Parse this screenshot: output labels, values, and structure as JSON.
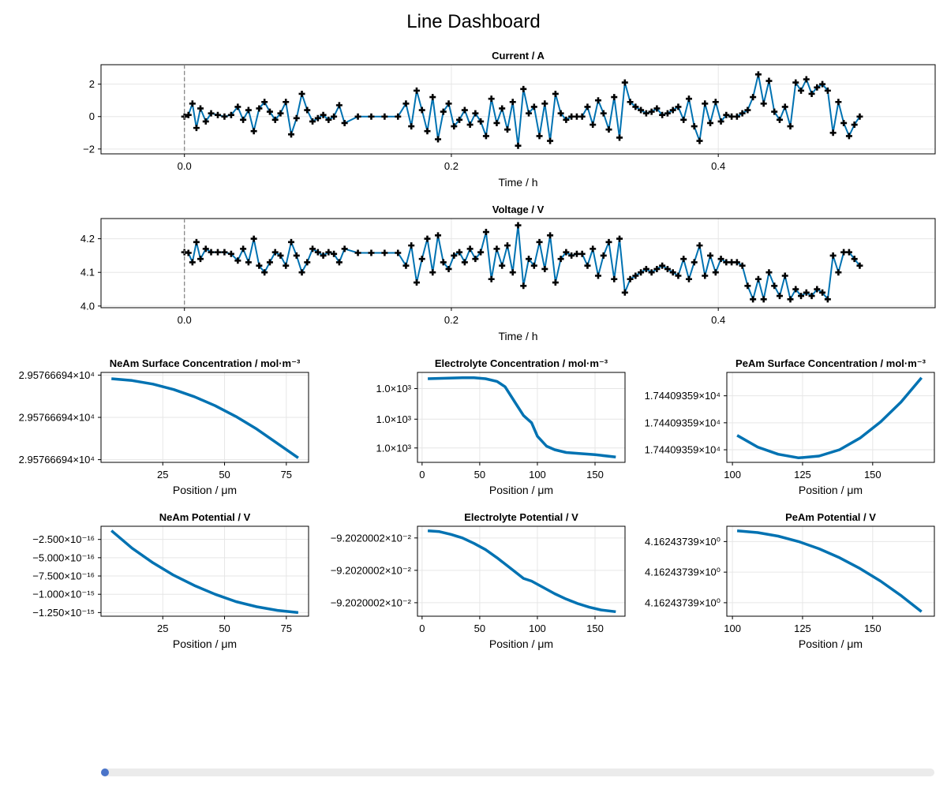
{
  "title": "Line Dashboard",
  "colors": {
    "line": "#0072b2",
    "marker": "#000000",
    "cursor": "#808080",
    "grid": "#e6e6e6",
    "slider_knob": "#4a74c9",
    "slider_track": "#ebebeb"
  },
  "slider": {
    "value": 0.0
  },
  "chart_data": [
    {
      "id": "current",
      "type": "line",
      "title": "Current  /  A",
      "xlabel": "Time  /  h",
      "xlim": [
        -0.0625,
        0.5625
      ],
      "ylim": [
        -2.3,
        3.2
      ],
      "xticks": [
        0.0,
        0.2,
        0.4
      ],
      "xtick_labels": [
        "0.0",
        "0.2",
        "0.4"
      ],
      "yticks": [
        -2,
        0,
        2
      ],
      "ytick_labels": [
        "−2",
        "0",
        "2"
      ],
      "markers": true,
      "cursor_x": 0.0,
      "series": [
        {
          "x": [
            0.0,
            0.003,
            0.006,
            0.009,
            0.012,
            0.016,
            0.02,
            0.025,
            0.03,
            0.035,
            0.04,
            0.044,
            0.048,
            0.052,
            0.056,
            0.06,
            0.064,
            0.068,
            0.072,
            0.076,
            0.08,
            0.084,
            0.088,
            0.092,
            0.096,
            0.1,
            0.104,
            0.108,
            0.112,
            0.116,
            0.12,
            0.13,
            0.14,
            0.15,
            0.16,
            0.166,
            0.17,
            0.174,
            0.178,
            0.182,
            0.186,
            0.19,
            0.194,
            0.198,
            0.202,
            0.206,
            0.21,
            0.214,
            0.218,
            0.222,
            0.226,
            0.23,
            0.234,
            0.238,
            0.242,
            0.246,
            0.25,
            0.254,
            0.258,
            0.262,
            0.266,
            0.27,
            0.274,
            0.278,
            0.282,
            0.286,
            0.29,
            0.294,
            0.298,
            0.302,
            0.306,
            0.31,
            0.314,
            0.318,
            0.322,
            0.326,
            0.33,
            0.334,
            0.338,
            0.342,
            0.346,
            0.35,
            0.354,
            0.358,
            0.362,
            0.366,
            0.37,
            0.374,
            0.378,
            0.382,
            0.386,
            0.39,
            0.394,
            0.398,
            0.402,
            0.406,
            0.41,
            0.414,
            0.418,
            0.422,
            0.426,
            0.43,
            0.434,
            0.438,
            0.442,
            0.446,
            0.45,
            0.454,
            0.458,
            0.462,
            0.466,
            0.47,
            0.474,
            0.478,
            0.482,
            0.486,
            0.49,
            0.494,
            0.498,
            0.502,
            0.506
          ],
          "y": [
            0,
            0.1,
            0.8,
            -0.7,
            0.5,
            -0.3,
            0.2,
            0.1,
            0.0,
            0.1,
            0.6,
            -0.2,
            0.4,
            -0.9,
            0.5,
            0.9,
            0.3,
            -0.2,
            0.2,
            0.9,
            -1.1,
            -0.1,
            1.4,
            0.4,
            -0.3,
            -0.1,
            0.1,
            -0.2,
            0.0,
            0.7,
            -0.4,
            0,
            0,
            0,
            0,
            0.8,
            -0.6,
            1.6,
            0.4,
            -0.9,
            1.2,
            -1.4,
            0.3,
            0.8,
            -0.6,
            -0.2,
            0.4,
            -0.5,
            0.2,
            -0.3,
            -1.2,
            1.1,
            -0.4,
            0.5,
            -0.8,
            0.9,
            -1.8,
            1.7,
            0.2,
            0.6,
            -1.2,
            0.8,
            -1.5,
            1.4,
            0.2,
            -0.2,
            0,
            0,
            0,
            0.6,
            -0.5,
            1.0,
            0.2,
            -0.8,
            1.2,
            -1.3,
            2.1,
            0.9,
            0.6,
            0.4,
            0.2,
            0.3,
            0.5,
            0.1,
            0.2,
            0.4,
            0.6,
            -0.2,
            1.1,
            -0.6,
            -1.5,
            0.8,
            -0.4,
            0.9,
            -0.3,
            0.1,
            0,
            0,
            0.2,
            0.4,
            1.2,
            2.6,
            0.8,
            2.2,
            0.3,
            -0.2,
            0.6,
            -0.6,
            2.1,
            1.6,
            2.3,
            1.4,
            1.8,
            2.0,
            1.6,
            -1.0,
            0.9,
            -0.4,
            -1.2,
            -0.5,
            0.0
          ]
        }
      ]
    },
    {
      "id": "voltage",
      "type": "line",
      "title": "Voltage  /  V",
      "xlabel": "Time  /  h",
      "xlim": [
        -0.0625,
        0.5625
      ],
      "ylim": [
        3.995,
        4.26
      ],
      "xticks": [
        0.0,
        0.2,
        0.4
      ],
      "xtick_labels": [
        "0.0",
        "0.2",
        "0.4"
      ],
      "yticks": [
        4.0,
        4.1,
        4.2
      ],
      "ytick_labels": [
        "4.0",
        "4.1",
        "4.2"
      ],
      "markers": true,
      "cursor_x": 0.0,
      "series": [
        {
          "x": [
            0.0,
            0.003,
            0.006,
            0.009,
            0.012,
            0.016,
            0.02,
            0.025,
            0.03,
            0.035,
            0.04,
            0.044,
            0.048,
            0.052,
            0.056,
            0.06,
            0.064,
            0.068,
            0.072,
            0.076,
            0.08,
            0.084,
            0.088,
            0.092,
            0.096,
            0.1,
            0.104,
            0.108,
            0.112,
            0.116,
            0.12,
            0.13,
            0.14,
            0.15,
            0.16,
            0.166,
            0.17,
            0.174,
            0.178,
            0.182,
            0.186,
            0.19,
            0.194,
            0.198,
            0.202,
            0.206,
            0.21,
            0.214,
            0.218,
            0.222,
            0.226,
            0.23,
            0.234,
            0.238,
            0.242,
            0.246,
            0.25,
            0.254,
            0.258,
            0.262,
            0.266,
            0.27,
            0.274,
            0.278,
            0.282,
            0.286,
            0.29,
            0.294,
            0.298,
            0.302,
            0.306,
            0.31,
            0.314,
            0.318,
            0.322,
            0.326,
            0.33,
            0.334,
            0.338,
            0.342,
            0.346,
            0.35,
            0.354,
            0.358,
            0.362,
            0.366,
            0.37,
            0.374,
            0.378,
            0.382,
            0.386,
            0.39,
            0.394,
            0.398,
            0.402,
            0.406,
            0.41,
            0.414,
            0.418,
            0.422,
            0.426,
            0.43,
            0.434,
            0.438,
            0.442,
            0.446,
            0.45,
            0.454,
            0.458,
            0.462,
            0.466,
            0.47,
            0.474,
            0.478,
            0.482,
            0.486,
            0.49,
            0.494,
            0.498,
            0.502,
            0.506
          ],
          "y": [
            4.16,
            4.158,
            4.13,
            4.19,
            4.14,
            4.17,
            4.16,
            4.16,
            4.16,
            4.155,
            4.135,
            4.17,
            4.13,
            4.2,
            4.12,
            4.1,
            4.13,
            4.16,
            4.15,
            4.12,
            4.19,
            4.15,
            4.1,
            4.13,
            4.17,
            4.16,
            4.15,
            4.16,
            4.155,
            4.13,
            4.17,
            4.158,
            4.158,
            4.158,
            4.158,
            4.12,
            4.18,
            4.07,
            4.14,
            4.2,
            4.1,
            4.21,
            4.13,
            4.11,
            4.15,
            4.16,
            4.13,
            4.17,
            4.14,
            4.16,
            4.22,
            4.08,
            4.17,
            4.12,
            4.18,
            4.1,
            4.24,
            4.06,
            4.14,
            4.12,
            4.19,
            4.11,
            4.21,
            4.07,
            4.14,
            4.16,
            4.15,
            4.155,
            4.155,
            4.12,
            4.17,
            4.09,
            4.15,
            4.19,
            4.08,
            4.2,
            4.04,
            4.08,
            4.09,
            4.1,
            4.11,
            4.1,
            4.11,
            4.12,
            4.11,
            4.1,
            4.09,
            4.14,
            4.08,
            4.13,
            4.18,
            4.09,
            4.15,
            4.1,
            4.14,
            4.13,
            4.13,
            4.13,
            4.12,
            4.06,
            4.02,
            4.08,
            4.02,
            4.1,
            4.06,
            4.03,
            4.09,
            4.02,
            4.05,
            4.03,
            4.04,
            4.03,
            4.05,
            4.04,
            4.02,
            4.15,
            4.1,
            4.16,
            4.16,
            4.14,
            4.12
          ]
        }
      ]
    },
    {
      "id": "neam-conc",
      "type": "line",
      "title": "NeAm Surface Concentration  /  mol·m⁻³",
      "xlabel": "Position  /  μm",
      "xlim": [
        0,
        84
      ],
      "ylim": [
        0,
        1.0
      ],
      "xticks": [
        25,
        50,
        75
      ],
      "xtick_labels": [
        "25",
        "50",
        "75"
      ],
      "yticks": [
        0.03,
        0.5,
        0.97
      ],
      "ytick_labels": [
        "2.95766694×10⁴",
        "2.95766694×10⁴",
        "2.95766694×10⁴"
      ],
      "markers": false,
      "series": [
        {
          "x": [
            4.2,
            12.6,
            21,
            29.4,
            37.8,
            46.2,
            54.6,
            63,
            71.4,
            79.8
          ],
          "y": [
            0.93,
            0.91,
            0.87,
            0.81,
            0.73,
            0.63,
            0.51,
            0.37,
            0.21,
            0.05
          ]
        }
      ]
    },
    {
      "id": "elyte-conc",
      "type": "line",
      "title": "Electrolyte Concentration  /  mol·m⁻³",
      "xlabel": "Position  /  μm",
      "xlim": [
        -4,
        176
      ],
      "ylim": [
        0,
        1.0
      ],
      "xticks": [
        0,
        50,
        100,
        150
      ],
      "xtick_labels": [
        "0",
        "50",
        "100",
        "150"
      ],
      "yticks": [
        0.16,
        0.48,
        0.82
      ],
      "ytick_labels": [
        "1.0×10³",
        "1.0×10³",
        "1.0×10³"
      ],
      "markers": false,
      "series": [
        {
          "x": [
            5,
            20,
            35,
            45,
            55,
            65,
            72,
            80,
            88,
            95,
            100,
            108,
            115,
            125,
            135,
            150,
            168
          ],
          "y": [
            0.93,
            0.935,
            0.94,
            0.94,
            0.93,
            0.9,
            0.84,
            0.68,
            0.52,
            0.44,
            0.29,
            0.18,
            0.14,
            0.11,
            0.1,
            0.085,
            0.06
          ]
        }
      ]
    },
    {
      "id": "peam-conc",
      "type": "line",
      "title": "PeAm Surface Concentration  /  mol·m⁻³",
      "xlabel": "Position  /  μm",
      "xlim": [
        98,
        172
      ],
      "ylim": [
        0,
        1.0
      ],
      "xticks": [
        100,
        125,
        150
      ],
      "xtick_labels": [
        "100",
        "125",
        "150"
      ],
      "yticks": [
        0.14,
        0.44,
        0.74
      ],
      "ytick_labels": [
        "1.74409359×10⁴",
        "1.74409359×10⁴",
        "1.74409359×10⁴"
      ],
      "markers": false,
      "series": [
        {
          "x": [
            101.7,
            109,
            116.3,
            123.6,
            130.9,
            138.2,
            145.5,
            152.8,
            160.1,
            167.4
          ],
          "y": [
            0.3,
            0.17,
            0.09,
            0.05,
            0.07,
            0.14,
            0.27,
            0.45,
            0.67,
            0.94
          ]
        }
      ]
    },
    {
      "id": "neam-pot",
      "type": "line",
      "title": "NeAm Potential  /  V",
      "xlabel": "Position  /  μm",
      "xlim": [
        0,
        84
      ],
      "ylim": [
        -1.3e-15,
        -7e-17
      ],
      "xticks": [
        25,
        50,
        75
      ],
      "xtick_labels": [
        "25",
        "50",
        "75"
      ],
      "yticks": [
        -2.5e-16,
        -5e-16,
        -7.5e-16,
        -1e-15,
        -1.25e-15
      ],
      "ytick_labels": [
        "−2.500×10⁻¹⁶",
        "−5.000×10⁻¹⁶",
        "−7.500×10⁻¹⁶",
        "−1.000×10⁻¹⁵",
        "−1.250×10⁻¹⁵"
      ],
      "markers": false,
      "series": [
        {
          "x": [
            4.2,
            12.6,
            21,
            29.4,
            37.8,
            46.2,
            54.6,
            63,
            71.4,
            79.8
          ],
          "y": [
            -1.3e-16,
            -3.7e-16,
            -5.7e-16,
            -7.4e-16,
            -8.8e-16,
            -1e-15,
            -1.1e-15,
            -1.17e-15,
            -1.22e-15,
            -1.25e-15
          ]
        }
      ]
    },
    {
      "id": "elyte-pot",
      "type": "line",
      "title": "Electrolyte Potential  /  V",
      "xlabel": "Position  /  μm",
      "xlim": [
        -4,
        176
      ],
      "ylim": [
        0,
        1.0
      ],
      "xticks": [
        0,
        50,
        100,
        150
      ],
      "xtick_labels": [
        "0",
        "50",
        "100",
        "150"
      ],
      "yticks": [
        0.15,
        0.51,
        0.87
      ],
      "ytick_labels": [
        "−9.2020002×10⁻²",
        "−9.2020002×10⁻²",
        "−9.2020002×10⁻²"
      ],
      "markers": false,
      "series": [
        {
          "x": [
            5,
            15,
            25,
            35,
            45,
            55,
            65,
            75,
            88,
            95,
            105,
            115,
            125,
            135,
            145,
            155,
            168
          ],
          "y": [
            0.95,
            0.94,
            0.91,
            0.87,
            0.81,
            0.74,
            0.65,
            0.55,
            0.42,
            0.39,
            0.32,
            0.25,
            0.19,
            0.14,
            0.1,
            0.07,
            0.05
          ]
        }
      ]
    },
    {
      "id": "peam-pot",
      "type": "line",
      "title": "PeAm Potential  /  V",
      "xlabel": "Position  /  μm",
      "xlim": [
        98,
        172
      ],
      "ylim": [
        0,
        1.0
      ],
      "xticks": [
        100,
        125,
        150
      ],
      "xtick_labels": [
        "100",
        "125",
        "150"
      ],
      "yticks": [
        0.15,
        0.49,
        0.83
      ],
      "ytick_labels": [
        "4.16243739×10⁰",
        "4.16243739×10⁰",
        "4.16243739×10⁰"
      ],
      "markers": false,
      "series": [
        {
          "x": [
            101.7,
            109,
            116.3,
            123.6,
            130.9,
            138.2,
            145.5,
            152.8,
            160.1,
            167.4
          ],
          "y": [
            0.95,
            0.93,
            0.89,
            0.83,
            0.75,
            0.65,
            0.53,
            0.39,
            0.23,
            0.05
          ]
        }
      ]
    }
  ]
}
